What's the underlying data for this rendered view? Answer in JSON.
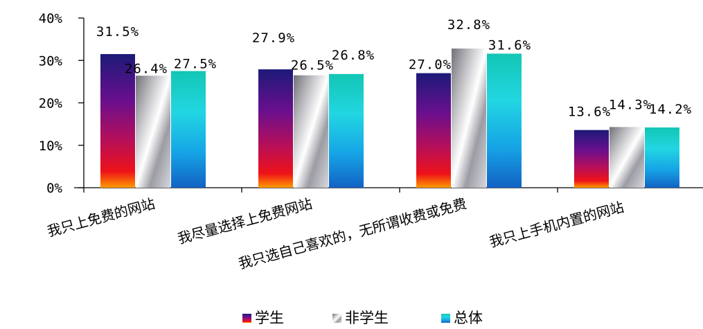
{
  "chart_data": {
    "type": "bar",
    "title": "",
    "xlabel": "",
    "ylabel": "",
    "categories": [
      "我只上免费的网站",
      "我尽量选择上免费网站",
      "我只选自己喜欢的，无所谓收费或免费",
      "我只上手机内置的网站"
    ],
    "series": [
      {
        "name": "学生",
        "values": [
          31.5,
          27.9,
          27.0,
          13.6
        ],
        "labels": [
          "31.5%",
          "27.9%",
          "27.0%",
          "13.6%"
        ]
      },
      {
        "name": "非学生",
        "values": [
          26.4,
          26.5,
          32.8,
          14.3
        ],
        "labels": [
          "26.4%",
          "26.5%",
          "32.8%",
          "14.3%"
        ]
      },
      {
        "name": "总体",
        "values": [
          27.5,
          26.8,
          31.6,
          14.2
        ],
        "labels": [
          "27.5%",
          "26.8%",
          "31.6%",
          "14.2%"
        ]
      }
    ],
    "ylim": [
      0,
      40
    ],
    "yticks": [
      "0%",
      "10%",
      "20%",
      "30%",
      "40%"
    ],
    "grid": false,
    "legend_position": "bottom-center",
    "colors": {
      "学生": [
        "#1a1a7a",
        "#6a1090",
        "#b0105a",
        "#e8101c",
        "#ff8a00"
      ],
      "非学生": [
        "#7a7a80",
        "#d8d8dc",
        "#ffffff",
        "#a0a0a8",
        "#d0d0d6"
      ],
      "总体": [
        "#10c8b8",
        "#20d8e0",
        "#18a8e8",
        "#1468c8"
      ]
    }
  }
}
